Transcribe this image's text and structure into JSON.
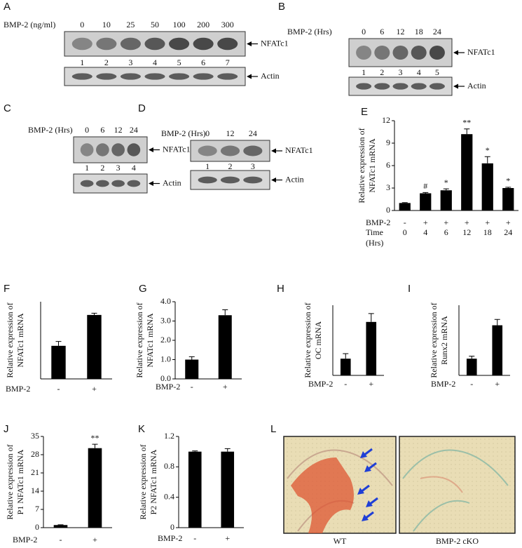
{
  "blots": [
    {
      "panel": "A",
      "condition_label": "BMP-2 (ng/ml)",
      "conditions": [
        "0",
        "10",
        "25",
        "50",
        "100",
        "200",
        "300"
      ],
      "lanes": [
        "1",
        "2",
        "3",
        "4",
        "5",
        "6",
        "7"
      ],
      "bands": [
        "NFATc1",
        "Actin"
      ]
    },
    {
      "panel": "B",
      "condition_label": "BMP-2 (Hrs)",
      "conditions": [
        "0",
        "6",
        "12",
        "18",
        "24"
      ],
      "lanes": [
        "1",
        "2",
        "3",
        "4",
        "5"
      ],
      "bands": [
        "NFATc1",
        "Actin"
      ]
    },
    {
      "panel": "C",
      "condition_label": "BMP-2 (Hrs)",
      "conditions": [
        "0",
        "6",
        "12",
        "24"
      ],
      "lanes": [
        "1",
        "2",
        "3",
        "4"
      ],
      "bands": [
        "NFATc1",
        "Actin"
      ]
    },
    {
      "panel": "D",
      "condition_label": "BMP-2 (Hrs)",
      "conditions": [
        "0",
        "12",
        "24"
      ],
      "lanes": [
        "1",
        "2",
        "3"
      ],
      "bands": [
        "NFATc1",
        "Actin"
      ]
    }
  ],
  "chart_data": [
    {
      "type": "bar",
      "panel": "E",
      "ylabel": [
        "Relative expression of",
        "NFATc1 mRNA"
      ],
      "treatment_label": "BMP-2",
      "treatment": [
        "-",
        "+",
        "+",
        "+",
        "+",
        "+"
      ],
      "category_label": "Time",
      "categories": [
        "0",
        "4",
        "6",
        "12",
        "18",
        "24"
      ],
      "category_unit": "(Hrs)",
      "values": [
        1,
        2.3,
        2.7,
        10.2,
        6.3,
        3.0
      ],
      "errors": [
        0.05,
        0.1,
        0.2,
        0.7,
        0.9,
        0.1
      ],
      "annotations": [
        null,
        "#",
        "*",
        "**",
        "*",
        "*"
      ],
      "color": "#000000",
      "ylim": [
        0,
        12
      ],
      "yticks": [
        0,
        3,
        6,
        9,
        12
      ]
    },
    {
      "type": "bar",
      "panel": "F",
      "ylabel": [
        "Relative expression of",
        "NFATc1 mRNA"
      ],
      "category_label": "BMP-2",
      "categories": [
        "-",
        "+"
      ],
      "values": [
        1.5,
        2.9
      ],
      "errors": [
        0.2,
        0.08
      ],
      "color": "#000000",
      "ylim": [
        0,
        3.5
      ]
    },
    {
      "type": "bar",
      "panel": "G",
      "ylabel": [
        "Relative expression of",
        "NFATc1 mRNA"
      ],
      "category_label": "BMP-2",
      "categories": [
        "-",
        "+"
      ],
      "values": [
        1.0,
        3.3
      ],
      "errors": [
        0.15,
        0.28
      ],
      "color": "#000000",
      "ylim": [
        0,
        4
      ],
      "yticks": [
        {
          "value": 0,
          "label": "0.0"
        },
        {
          "value": 1,
          "label": "1.0"
        },
        {
          "value": 2,
          "label": "2.0"
        },
        {
          "value": 3,
          "label": "3.0"
        },
        {
          "value": 4,
          "label": "4.0"
        }
      ]
    },
    {
      "type": "bar",
      "panel": "H",
      "ylabel": [
        "Relative expression of",
        "OC mRNA"
      ],
      "category_label": "BMP-2",
      "categories": [
        "-",
        "+"
      ],
      "values": [
        1.0,
        3.2
      ],
      "errors": [
        0.3,
        0.5
      ],
      "color": "#000000",
      "ylim": [
        0,
        4.2
      ]
    },
    {
      "type": "bar",
      "panel": "I",
      "ylabel": [
        "Relative expression of",
        "Runx2  mRNA"
      ],
      "category_label": "BMP-2",
      "categories": [
        "-",
        "+"
      ],
      "values": [
        1.0,
        3.0
      ],
      "errors": [
        0.15,
        0.35
      ],
      "color": "#000000",
      "ylim": [
        0,
        4.2
      ]
    },
    {
      "type": "bar",
      "panel": "J",
      "ylabel": [
        "Relative expression of",
        "P1 NFATc1 mRNA"
      ],
      "category_label": "BMP-2",
      "categories": [
        "-",
        "+"
      ],
      "values": [
        1,
        30.5
      ],
      "errors": [
        0.1,
        1.5
      ],
      "annotations": [
        null,
        "**"
      ],
      "color": "#000000",
      "ylim": [
        0,
        35
      ],
      "yticks": [
        0,
        7,
        14,
        21,
        28,
        35
      ]
    },
    {
      "type": "bar",
      "panel": "K",
      "ylabel": [
        "Relative expression of",
        "P2 NFATc1 mRNA"
      ],
      "category_label": "BMP-2",
      "categories": [
        "-",
        "+"
      ],
      "values": [
        1.0,
        1.0
      ],
      "errors": [
        0.01,
        0.04
      ],
      "color": "#000000",
      "ylim": [
        0,
        1.2
      ],
      "yticks": [
        0,
        0.4,
        0.8,
        1.2
      ]
    }
  ],
  "histology": {
    "panel": "L",
    "captions": [
      "WT",
      "BMP-2 cKO"
    ]
  }
}
